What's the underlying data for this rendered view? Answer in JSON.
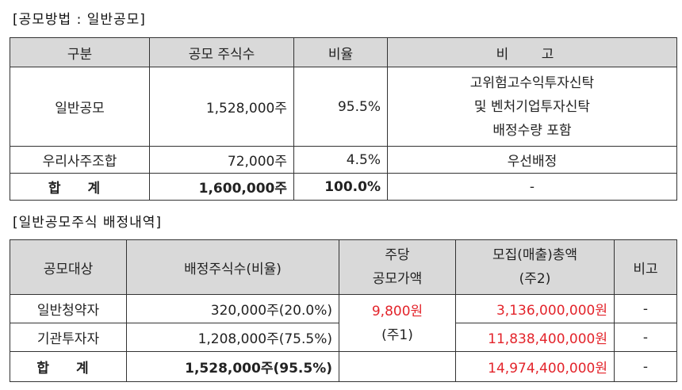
{
  "section1": {
    "title": "[공모방법 : 일반공모]",
    "headers": [
      "구분",
      "공모 주식수",
      "비율",
      "비 고"
    ],
    "rows": [
      {
        "label": "일반공모",
        "shares": "1,528,000주",
        "ratio": "95.5%",
        "note_lines": [
          "고위험고수익투자신탁",
          "및 벤처기업투자신탁",
          "배정수량 포함"
        ]
      },
      {
        "label": "우리사주조합",
        "shares": "72,000주",
        "ratio": "4.5%",
        "note": "우선배정"
      }
    ],
    "total": {
      "label": "합 계",
      "shares": "1,600,000주",
      "ratio": "100.0%",
      "note": "-"
    }
  },
  "section2": {
    "title": "[일반공모주식 배정내역]",
    "headers": {
      "target": "공모대상",
      "allocation": "배정주식수(비율)",
      "price_line1": "주당",
      "price_line2": "공모가액",
      "amount_line1": "모집(매출)총액",
      "amount_line2": "(주2)",
      "note": "비고"
    },
    "rows": [
      {
        "target": "일반청약자",
        "allocation": "320,000주(20.0%)",
        "amount": "3,136,000,000원",
        "note": "-"
      },
      {
        "target": "기관투자자",
        "allocation": "1,208,000주(75.5%)",
        "amount": "11,838,400,000원",
        "note": "-"
      }
    ],
    "price": {
      "value": "9,800원",
      "footnote": "(주1)"
    },
    "total": {
      "target": "합 계",
      "allocation": "1,528,000주(95.5%)",
      "amount": "14,974,400,000원",
      "note": "-"
    },
    "colors": {
      "amount": "#e3242b"
    }
  }
}
